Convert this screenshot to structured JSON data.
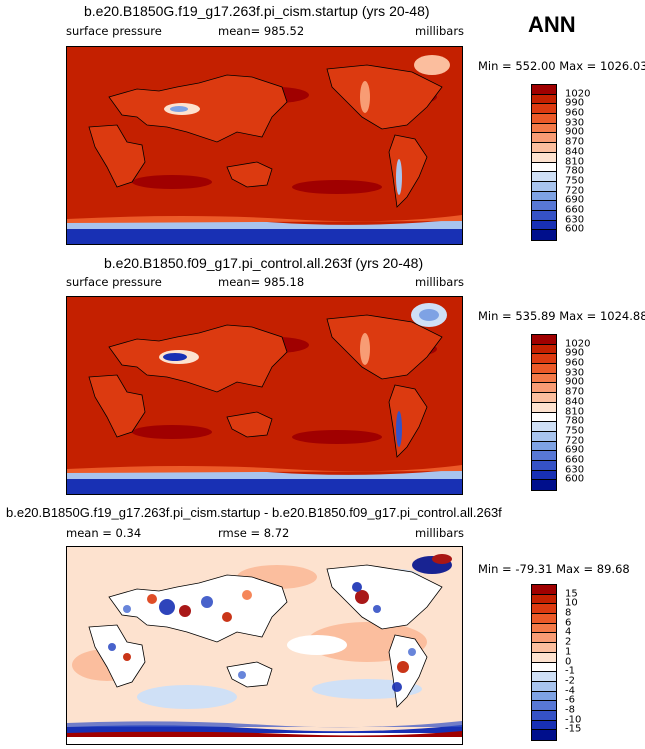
{
  "season": "ANN",
  "panels": [
    {
      "title": "b.e20.B1850G.f19_g17.263f.pi_cism.startup (yrs 20-48)",
      "left_label": "surface pressure",
      "center_label": "mean= 985.52",
      "right_label": "millibars",
      "minmax": "Min = 552.00 Max = 1026.03",
      "colorbar_labels": [
        "1020",
        "990",
        "960",
        "930",
        "900",
        "870",
        "840",
        "810",
        "780",
        "750",
        "720",
        "690",
        "660",
        "630",
        "600"
      ],
      "colors": [
        "#a00000",
        "#c42000",
        "#dc3a10",
        "#ec5a28",
        "#f47a48",
        "#f89c74",
        "#fbbe9e",
        "#fde2cf",
        "#ffffff",
        "#cfe0f6",
        "#a8c4ee",
        "#7ea2e4",
        "#5878d6",
        "#3552c6",
        "#1830b4",
        "#000f8c"
      ]
    },
    {
      "title": "b.e20.B1850.f09_g17.pi_control.all.263f (yrs 20-48)",
      "left_label": "surface pressure",
      "center_label": "mean= 985.18",
      "right_label": "millibars",
      "minmax": "Min = 535.89 Max = 1024.88",
      "colorbar_labels": [
        "1020",
        "990",
        "960",
        "930",
        "900",
        "870",
        "840",
        "810",
        "780",
        "750",
        "720",
        "690",
        "660",
        "630",
        "600"
      ],
      "colors": [
        "#a00000",
        "#c42000",
        "#dc3a10",
        "#ec5a28",
        "#f47a48",
        "#f89c74",
        "#fbbe9e",
        "#fde2cf",
        "#ffffff",
        "#cfe0f6",
        "#a8c4ee",
        "#7ea2e4",
        "#5878d6",
        "#3552c6",
        "#1830b4",
        "#000f8c"
      ]
    },
    {
      "title": "b.e20.B1850G.f19_g17.263f.pi_cism.startup - b.e20.B1850.f09_g17.pi_control.all.263f",
      "left_label": "mean =    0.34",
      "center_label": "rmse =    8.72",
      "right_label": "millibars",
      "minmax": "Min = -79.31 Max =  89.68",
      "colorbar_labels": [
        "15",
        "10",
        "8",
        "6",
        "4",
        "2",
        "1",
        "0",
        "-1",
        "-2",
        "-4",
        "-6",
        "-8",
        "-10",
        "-15"
      ],
      "colors": [
        "#a00000",
        "#c42000",
        "#dc3a10",
        "#ec5a28",
        "#f47a48",
        "#f89c74",
        "#fbbe9e",
        "#fde2cf",
        "#ffffff",
        "#cfe0f6",
        "#a8c4ee",
        "#7ea2e4",
        "#5878d6",
        "#3552c6",
        "#1830b4",
        "#000f8c"
      ]
    }
  ]
}
